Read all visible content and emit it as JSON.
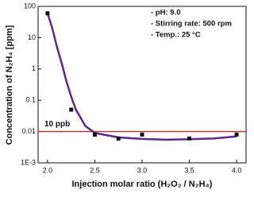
{
  "chart_data": {
    "type": "scatter",
    "x_label": "Injection molar ratio (H₂O₂ / N₂H₄)",
    "y_label": "Concentration of N₂H₄ [ppm]",
    "annotations": [
      "- pH: 9.0",
      "- Stirring rate:  500 rpm",
      "- Temp.: 25 °C"
    ],
    "annotation_color": "#2b3f9e",
    "log_y": true,
    "xlim": [
      1.9,
      4.1
    ],
    "xticks": [
      {
        "value": 2,
        "label": "2.0"
      },
      2.5,
      {
        "value": 3,
        "label": "3.0"
      },
      3.5,
      {
        "value": 4,
        "label": "4.0"
      }
    ],
    "ylim": [
      0.001,
      100
    ],
    "yticks": [
      {
        "value": 0.001,
        "label": "1E-3"
      },
      0.01,
      0.1,
      1,
      10,
      100
    ],
    "series": [
      {
        "mode": "line",
        "color": "#5b2a8c",
        "x": [
          2.0,
          2.05,
          2.1,
          2.15,
          2.2,
          2.25,
          2.3,
          2.4,
          2.5,
          2.75,
          3.0,
          3.25,
          3.5,
          3.75,
          4.0
        ],
        "values": [
          60,
          20,
          5,
          1.5,
          0.4,
          0.13,
          0.05,
          0.015,
          0.009,
          0.0065,
          0.0058,
          0.0055,
          0.0057,
          0.006,
          0.007
        ]
      },
      {
        "mode": "markers",
        "color": "#111111",
        "x": [
          2.0,
          2.25,
          2.5,
          2.75,
          3.0,
          3.5,
          4.0
        ],
        "values": [
          60,
          0.05,
          0.008,
          0.006,
          0.008,
          0.006,
          0.008
        ]
      }
    ],
    "reference_line": {
      "value": 0.01,
      "label": "10 ppb",
      "color": "#d42020"
    }
  }
}
